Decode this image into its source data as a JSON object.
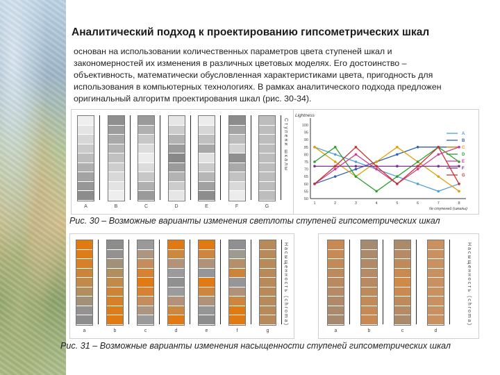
{
  "title": "Аналитический подход к проектированию гипсометрических шкал",
  "body_text": "основан на использовании количественных параметров цвета ступеней шкал и закономерностей их изменения в различных цветовых моделях. Его достоинство – объективность, математически обусловленная характеристиками цвета, пригодность для использования в компьютерных технологиях. В рамках аналитического подхода предложен оригинальный алгоритм проектирования шкал (рис. 30-34).",
  "fig30": {
    "caption": "Рис. 30 – Возможные варианты изменения светлоты ступеней гипсометрических шкал",
    "column_letters": [
      "A",
      "B",
      "C",
      "D",
      "E",
      "F",
      "G"
    ],
    "columns": [
      [
        "#efefef",
        "#e4e4e4",
        "#d7d7d7",
        "#cacaca",
        "#bdbdbd",
        "#afafaf",
        "#a3a3a3",
        "#979797",
        "#8c8c8c"
      ],
      [
        "#8f8f8f",
        "#9d9d9d",
        "#a9a9a9",
        "#b5b5b5",
        "#c1c1c1",
        "#cdcdcd",
        "#d8d8d8",
        "#e3e3e3",
        "#eeeeee"
      ],
      [
        "#9a9a9a",
        "#b0b0b0",
        "#c7c7c7",
        "#dcdcdc",
        "#ececec",
        "#dcdcdc",
        "#c7c7c7",
        "#b0b0b0",
        "#9a9a9a"
      ],
      [
        "#e6e6e6",
        "#cccccc",
        "#b3b3b3",
        "#9b9b9b",
        "#888888",
        "#9b9b9b",
        "#b3b3b3",
        "#cccccc",
        "#e6e6e6"
      ],
      [
        "#ececec",
        "#d6d6d6",
        "#c0c0c0",
        "#a8a8a8",
        "#e2e2e2",
        "#cbcbcb",
        "#b6b6b6",
        "#a1a1a1",
        "#8d8d8d"
      ],
      [
        "#8c8c8c",
        "#a4a4a4",
        "#bcbcbc",
        "#d2d2d2",
        "#8f8f8f",
        "#a9a9a9",
        "#c2c2c2",
        "#d9d9d9",
        "#ececec"
      ],
      [
        "#bdbdbd",
        "#bdbdbd",
        "#bdbdbd",
        "#bdbdbd",
        "#bdbdbd",
        "#bdbdbd",
        "#bdbdbd",
        "#bdbdbd",
        "#bdbdbd"
      ]
    ],
    "side_label": "Ступени шкалы"
  },
  "chart_data": {
    "type": "line",
    "ylabel": "Lightness",
    "xlabel": "№ ступеней (шкалы)",
    "x": [
      1,
      2,
      3,
      4,
      5,
      6,
      7,
      8
    ],
    "ylim": [
      50,
      100
    ],
    "yticks": [
      50,
      55,
      60,
      65,
      70,
      75,
      80,
      85,
      90,
      95,
      100
    ],
    "series": [
      {
        "name": "A",
        "color": "#4f9fd8",
        "values": [
          85,
          80,
          75,
          70,
          65,
          60,
          55,
          60
        ]
      },
      {
        "name": "B",
        "color": "#2f5fb0",
        "values": [
          60,
          65,
          70,
          75,
          80,
          85,
          85,
          85
        ]
      },
      {
        "name": "C",
        "color": "#e0a000",
        "values": [
          85,
          75,
          65,
          75,
          85,
          75,
          65,
          55
        ]
      },
      {
        "name": "D",
        "color": "#2c9f2c",
        "values": [
          75,
          85,
          65,
          55,
          65,
          75,
          85,
          75
        ]
      },
      {
        "name": "E",
        "color": "#d23b8c",
        "values": [
          60,
          70,
          80,
          70,
          60,
          70,
          80,
          85
        ]
      },
      {
        "name": "F",
        "color": "#7a2c90",
        "values": [
          72,
          72,
          72,
          72,
          72,
          72,
          72,
          72
        ]
      },
      {
        "name": "G",
        "color": "#c83232",
        "values": [
          60,
          72,
          85,
          72,
          60,
          72,
          85,
          60
        ]
      }
    ]
  },
  "fig31": {
    "caption": "Рис. 31 – Возможные варианты изменения насыщенности ступеней гипсометрических шкал",
    "left_letters": [
      "a",
      "b",
      "c",
      "d",
      "e",
      "f",
      "g"
    ],
    "right_letters": [
      "a",
      "b",
      "c",
      "d"
    ],
    "side_label": "Насыщенность (chroma)",
    "left_columns": [
      [
        "#e07a12",
        "#dc7d1c",
        "#d6812a",
        "#cc8538",
        "#c08a4a",
        "#b28d5e",
        "#a39078",
        "#959191",
        "#8d8d8d"
      ],
      [
        "#8d8d8d",
        "#959191",
        "#a39078",
        "#b28d5e",
        "#c08a4a",
        "#cc8538",
        "#d6812a",
        "#dc7d1c",
        "#e07a12"
      ],
      [
        "#9a9a9a",
        "#ad9580",
        "#c58d5e",
        "#d68232",
        "#e07a12",
        "#d68232",
        "#c58d5e",
        "#ad9580",
        "#9a9a9a"
      ],
      [
        "#e07a12",
        "#cd8840",
        "#b5917a",
        "#9c9a9a",
        "#909090",
        "#9c9a9a",
        "#b5917a",
        "#cd8840",
        "#e07a12"
      ],
      [
        "#e07a12",
        "#cc8640",
        "#b0917a",
        "#969696",
        "#e07a12",
        "#cc8640",
        "#b0917a",
        "#969696",
        "#8d8d8d"
      ],
      [
        "#909090",
        "#9e9a90",
        "#b4906a",
        "#cd8438",
        "#969696",
        "#b0917a",
        "#cc8640",
        "#e07a12",
        "#e07a12"
      ],
      [
        "#b88a5a",
        "#b88a5a",
        "#b88a5a",
        "#b88a5a",
        "#b88a5a",
        "#b88a5a",
        "#b88a5a",
        "#b88a5a",
        "#b88a5a"
      ]
    ],
    "right_columns": [
      [
        "#c88a52",
        "#c58a55",
        "#c18a58",
        "#bd8a5c",
        "#b98a60",
        "#b58a64",
        "#b08a68",
        "#ab8a6c",
        "#a68a70"
      ],
      [
        "#a68a70",
        "#ab8a6c",
        "#b08a68",
        "#b58a64",
        "#b98a60",
        "#bd8a5c",
        "#c18a58",
        "#c58a55",
        "#c88a52"
      ],
      [
        "#ab8a6c",
        "#b58a64",
        "#bf8a5a",
        "#c98a50",
        "#d08a48",
        "#c98a50",
        "#bf8a5a",
        "#b58a64",
        "#ab8a6c"
      ],
      [
        "#c99060",
        "#c99060",
        "#c99060",
        "#c99060",
        "#c99060",
        "#c99060",
        "#c99060",
        "#c99060",
        "#c99060"
      ]
    ]
  }
}
